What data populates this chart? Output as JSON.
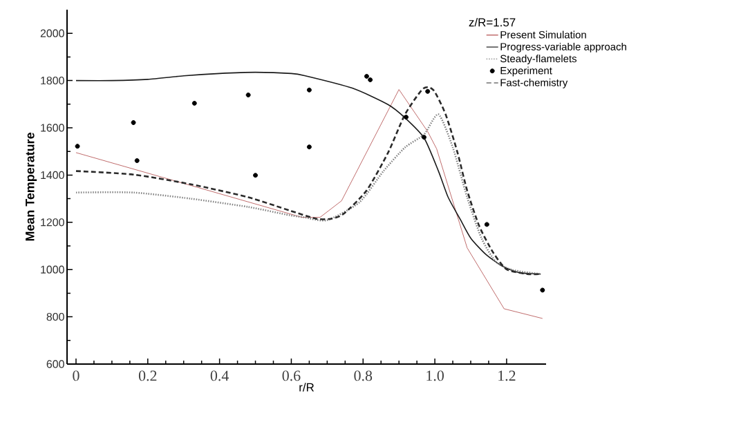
{
  "chart_data": {
    "type": "line",
    "xlabel": "r/R",
    "ylabel": "Mean Temperature",
    "legend_title": "z/R=1.57",
    "legend": "top right",
    "xlim": [
      -0.025,
      1.31
    ],
    "ylim": [
      600,
      2100
    ],
    "xticks": [
      0,
      0.2,
      0.4,
      0.6,
      0.8,
      {
        "value": 1.0,
        "label": "1.0"
      },
      1.2
    ],
    "yticks": [
      600,
      800,
      1000,
      1200,
      1400,
      1600,
      1800,
      2000
    ],
    "series": [
      {
        "name": "Present Simulation",
        "line_style": "solid",
        "color": "#b04848",
        "x": [
          0,
          0.32,
          0.63,
          0.68,
          0.74,
          0.9,
          0.98,
          1.005,
          1.09,
          1.193,
          1.3
        ],
        "values": [
          1495,
          1356,
          1221,
          1221,
          1291,
          1762,
          1584,
          1511,
          1092,
          834,
          793
        ]
      },
      {
        "name": "Progress-variable approach",
        "line_style": "solid",
        "color": "#1a1a1a",
        "x": [
          0,
          0.1,
          0.2,
          0.3,
          0.4,
          0.5,
          0.6,
          0.637,
          0.77,
          0.87,
          0.917,
          0.97,
          1.01,
          1.037,
          1.07,
          1.1,
          1.143,
          1.19,
          1.235,
          1.295
        ],
        "values": [
          1800,
          1800,
          1805,
          1820,
          1830,
          1835,
          1830,
          1821,
          1768,
          1698,
          1642,
          1557,
          1417,
          1306,
          1215,
          1133,
          1063,
          1013,
          987,
          981
        ]
      },
      {
        "name": "Steady-flamelets",
        "line_style": "dotted",
        "color": "#808080",
        "x": [
          0,
          0.16,
          0.32,
          0.48,
          0.595,
          0.637,
          0.7,
          0.79,
          0.857,
          0.917,
          0.97,
          1.01,
          1.05,
          1.09,
          1.13,
          1.17,
          1.217,
          1.295
        ],
        "values": [
          1326,
          1326,
          1300,
          1265,
          1230,
          1221,
          1209,
          1285,
          1417,
          1517,
          1572,
          1657,
          1517,
          1306,
          1133,
          1033,
          998,
          981
        ]
      },
      {
        "name": "Experiment",
        "type": "scatter",
        "marker": "circle",
        "color": "#000000",
        "x": [
          0.004,
          0.16,
          0.17,
          0.33,
          0.48,
          0.5,
          0.65,
          0.65,
          0.81,
          0.82,
          0.92,
          0.97,
          0.98,
          1.145,
          1.3
        ],
        "values": [
          1522,
          1622,
          1461,
          1704,
          1739,
          1399,
          1760,
          1519,
          1818,
          1803,
          1645,
          1560,
          1754,
          1191,
          913
        ]
      },
      {
        "name": "Fast-chemistry",
        "line_style": "dashed",
        "color": "#2a2a2a",
        "x": [
          0,
          0.16,
          0.32,
          0.48,
          0.595,
          0.67,
          0.71,
          0.745,
          0.81,
          0.87,
          0.917,
          0.967,
          0.996,
          1.03,
          1.063,
          1.09,
          1.124,
          1.163,
          1.2,
          1.257,
          1.295
        ],
        "values": [
          1417,
          1402,
          1361,
          1306,
          1250,
          1215,
          1215,
          1235,
          1335,
          1496,
          1657,
          1765,
          1760,
          1657,
          1496,
          1335,
          1183,
          1071,
          1001,
          981,
          981
        ]
      }
    ]
  }
}
